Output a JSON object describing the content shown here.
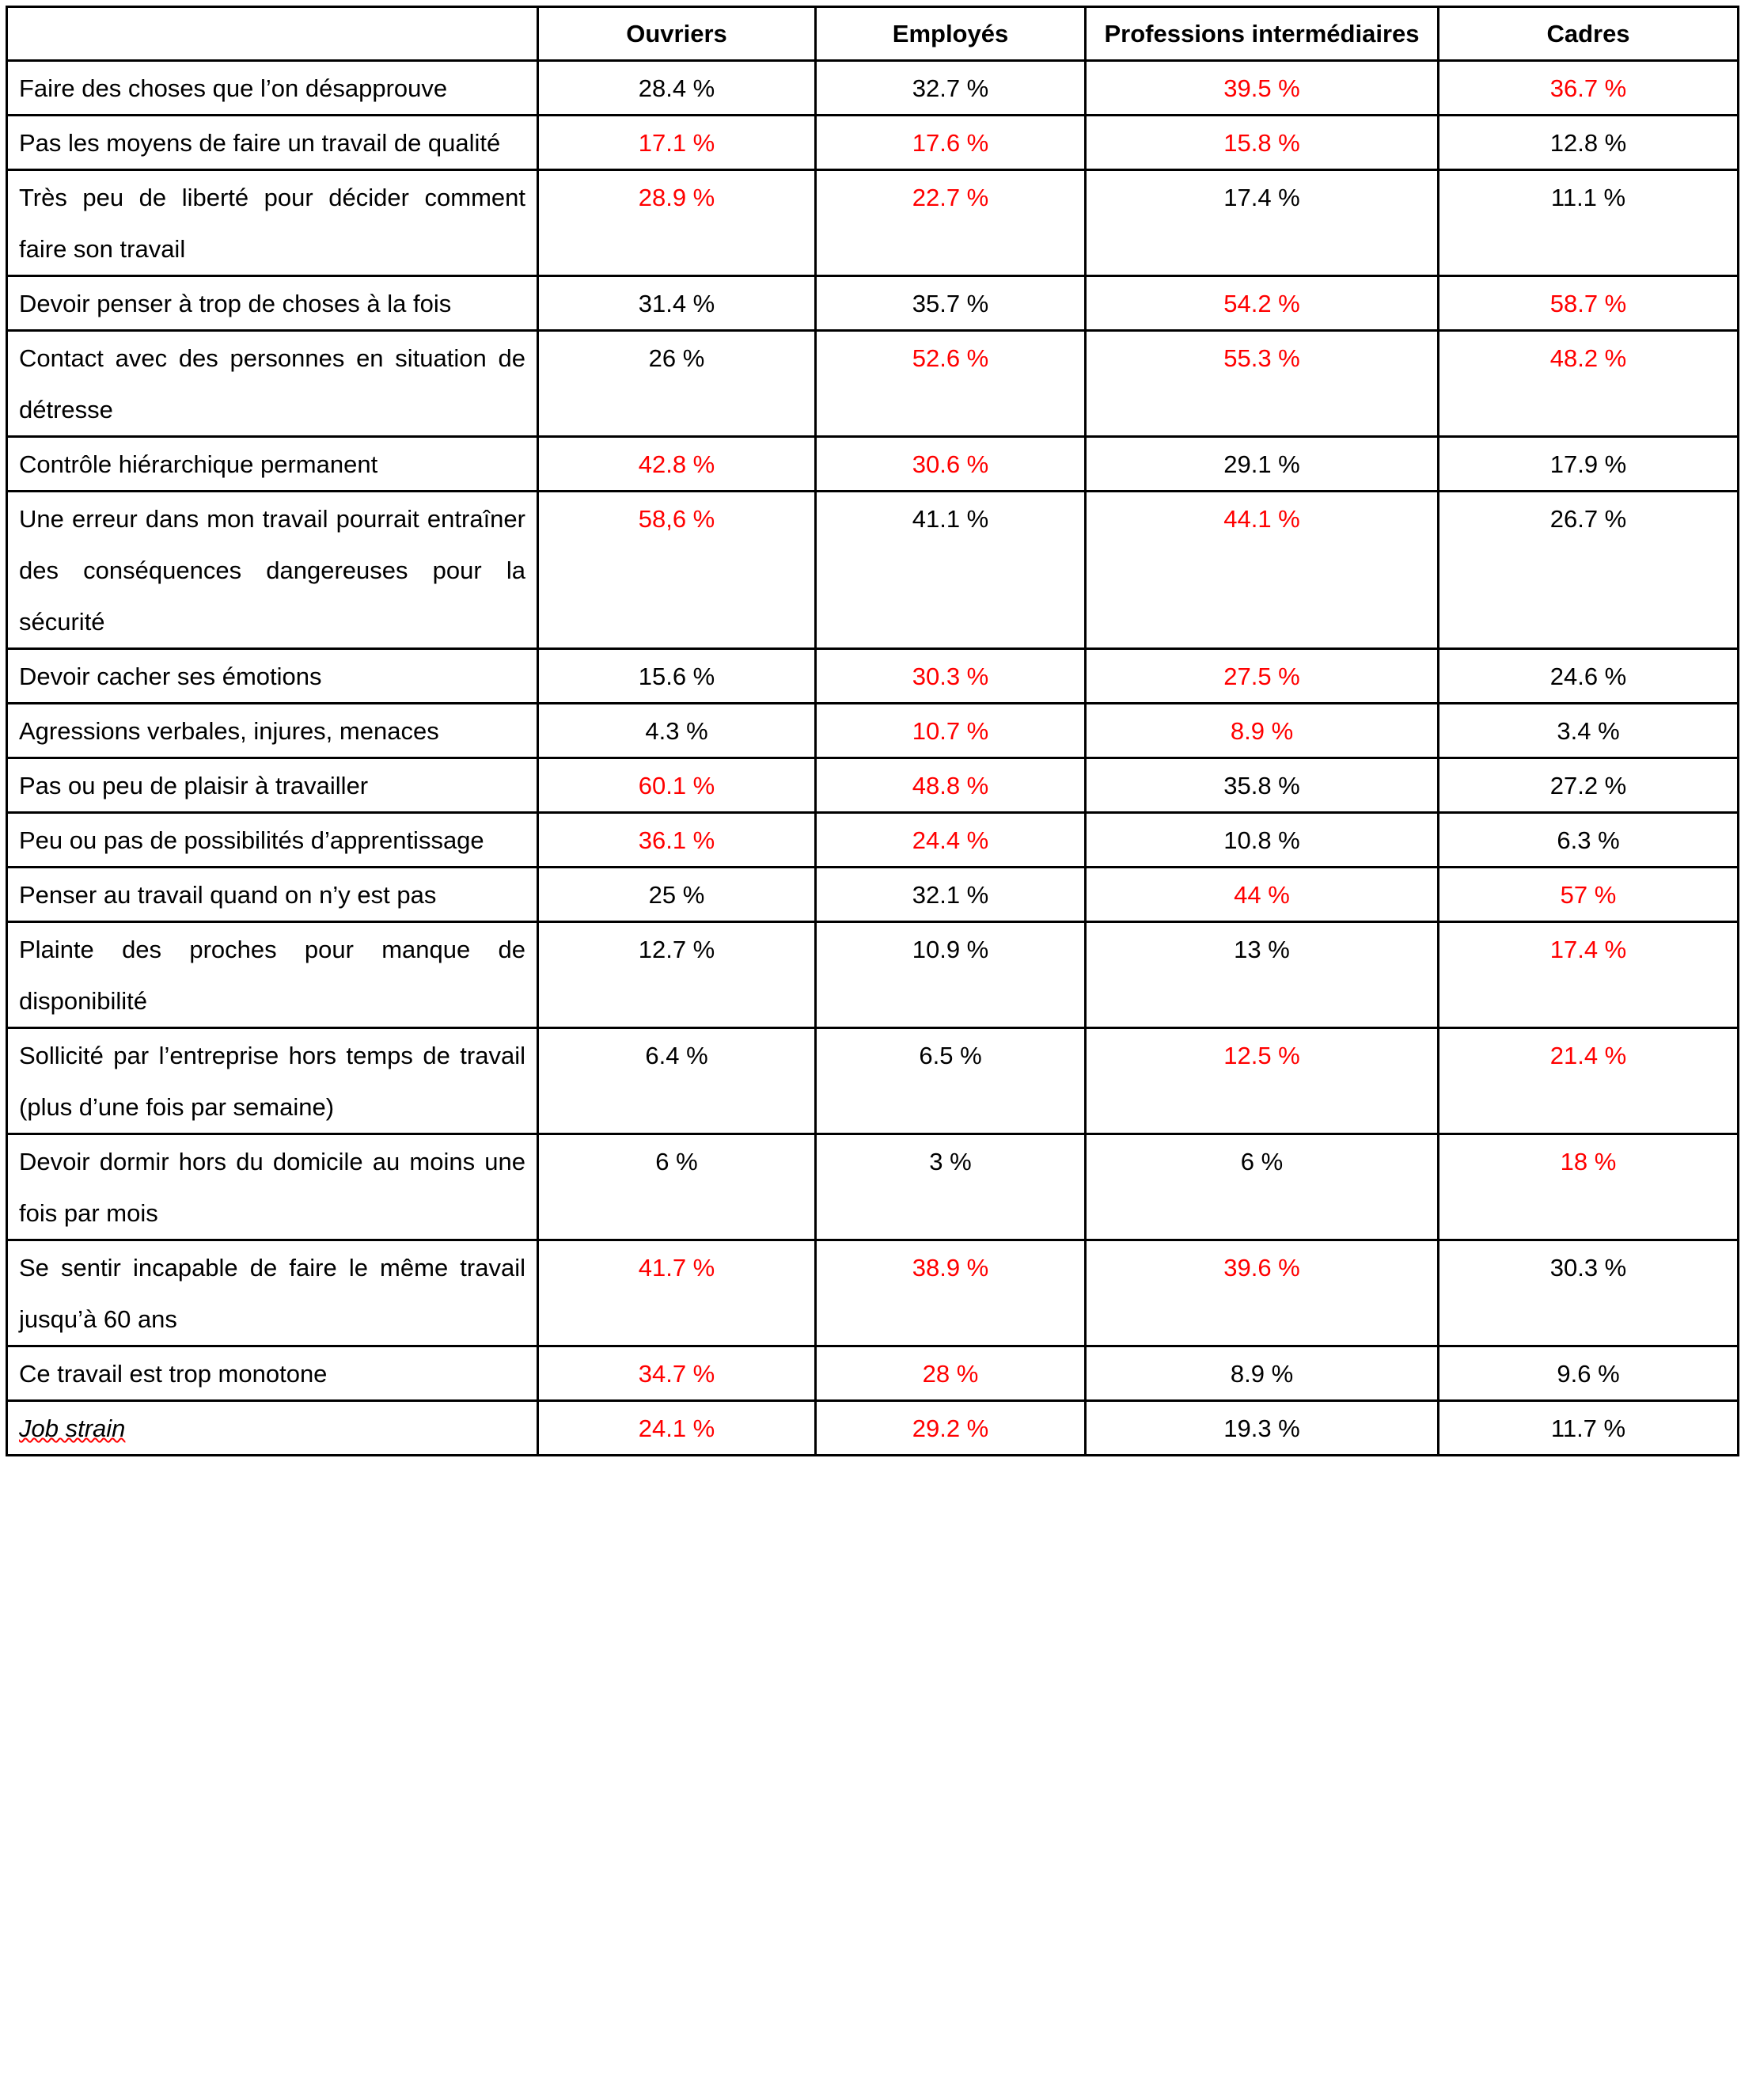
{
  "table": {
    "highlight_color": "#ff0000",
    "columns": [
      "Ouvriers",
      "Employés",
      "Professions intermédiaires",
      "Cadres"
    ],
    "rows": [
      {
        "label": "Faire des choses que l’on désapprouve",
        "cells": [
          "28.4 %",
          "32.7 %",
          "39.5 %",
          "36.7 %"
        ],
        "highlighted": [
          false,
          false,
          true,
          true
        ]
      },
      {
        "label": "Pas les moyens de faire un travail de qualité",
        "cells": [
          "17.1 %",
          "17.6 %",
          "15.8 %",
          "12.8 %"
        ],
        "highlighted": [
          true,
          true,
          true,
          false
        ]
      },
      {
        "label": "Très peu de liberté pour décider comment faire son travail",
        "cells": [
          "28.9 %",
          "22.7 %",
          "17.4 %",
          "11.1 %"
        ],
        "highlighted": [
          true,
          true,
          false,
          false
        ]
      },
      {
        "label": "Devoir penser à trop de choses à la fois",
        "cells": [
          "31.4 %",
          "35.7 %",
          "54.2 %",
          "58.7 %"
        ],
        "highlighted": [
          false,
          false,
          true,
          true
        ]
      },
      {
        "label": "Contact avec des personnes en situation de détresse",
        "cells": [
          "26 %",
          "52.6 %",
          "55.3 %",
          "48.2 %"
        ],
        "highlighted": [
          false,
          true,
          true,
          true
        ]
      },
      {
        "label": "Contrôle hiérarchique permanent",
        "cells": [
          "42.8 %",
          "30.6 %",
          "29.1 %",
          "17.9 %"
        ],
        "highlighted": [
          true,
          true,
          false,
          false
        ]
      },
      {
        "label": "Une erreur dans mon travail pourrait entraîner des conséquences dangereuses pour la sécurité",
        "cells": [
          "58,6 %",
          "41.1 %",
          "44.1 %",
          "26.7 %"
        ],
        "highlighted": [
          true,
          false,
          true,
          false
        ]
      },
      {
        "label": "Devoir cacher ses émotions",
        "cells": [
          "15.6 %",
          "30.3 %",
          "27.5 %",
          "24.6 %"
        ],
        "highlighted": [
          false,
          true,
          true,
          false
        ]
      },
      {
        "label": "Agressions verbales, injures, menaces",
        "cells": [
          "4.3 %",
          "10.7 %",
          "8.9 %",
          "3.4 %"
        ],
        "highlighted": [
          false,
          true,
          true,
          false
        ]
      },
      {
        "label": "Pas ou peu de plaisir à travailler",
        "cells": [
          "60.1 %",
          "48.8 %",
          "35.8 %",
          "27.2 %"
        ],
        "highlighted": [
          true,
          true,
          false,
          false
        ]
      },
      {
        "label": "Peu ou pas de possibilités d’apprentissage",
        "cells": [
          "36.1 %",
          "24.4 %",
          "10.8 %",
          "6.3 %"
        ],
        "highlighted": [
          true,
          true,
          false,
          false
        ]
      },
      {
        "label": "Penser au travail quand on n’y est pas",
        "cells": [
          "25 %",
          "32.1 %",
          "44 %",
          "57 %"
        ],
        "highlighted": [
          false,
          false,
          true,
          true
        ]
      },
      {
        "label": "Plainte des proches pour manque de disponibilité",
        "cells": [
          "12.7 %",
          "10.9 %",
          "13 %",
          "17.4 %"
        ],
        "highlighted": [
          false,
          false,
          false,
          true
        ]
      },
      {
        "label": "Sollicité par l’entreprise hors temps de travail (plus d’une fois par semaine)",
        "cells": [
          "6.4 %",
          "6.5 %",
          "12.5 %",
          "21.4 %"
        ],
        "highlighted": [
          false,
          false,
          true,
          true
        ]
      },
      {
        "label": "Devoir dormir hors du domicile au moins une fois par mois",
        "cells": [
          "6 %",
          "3 %",
          "6 %",
          "18 %"
        ],
        "highlighted": [
          false,
          false,
          false,
          true
        ]
      },
      {
        "label": "Se sentir incapable de faire le même travail jusqu’à 60 ans",
        "cells": [
          "41.7 %",
          "38.9 %",
          "39.6 %",
          "30.3 %"
        ],
        "highlighted": [
          true,
          true,
          true,
          false
        ]
      },
      {
        "label": "Ce travail est trop monotone",
        "cells": [
          "34.7 %",
          "28 %",
          "8.9 %",
          "9.6 %"
        ],
        "highlighted": [
          true,
          true,
          false,
          false
        ]
      },
      {
        "label": "Job strain",
        "cells": [
          "24.1 %",
          "29.2 %",
          "19.3 %",
          "11.7 %"
        ],
        "highlighted": [
          true,
          true,
          false,
          false
        ]
      }
    ]
  }
}
